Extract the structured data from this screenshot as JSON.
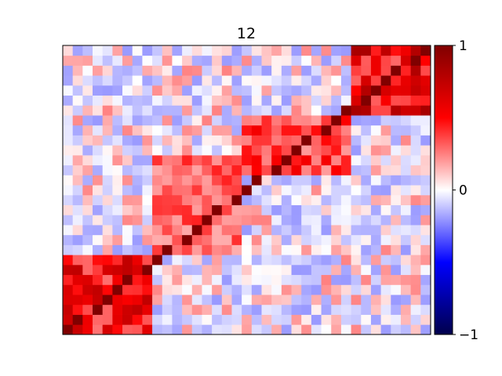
{
  "chart_data": {
    "type": "heatmap",
    "title": "12",
    "xlabel": "",
    "ylabel": "",
    "rows": 29,
    "cols": 37,
    "origin": "bottom-left",
    "grid": false,
    "colormap": "seismic",
    "clim": [
      -1,
      1
    ],
    "colorbar": {
      "placement": "right",
      "ticks": [
        1,
        0,
        -1
      ],
      "tick_labels": [
        "1",
        "0",
        "−1"
      ]
    },
    "diagonal_value": 1.0,
    "blocks": [
      {
        "name": "block-a",
        "x_range": [
          0,
          9
        ],
        "y_range": [
          0,
          8
        ],
        "value": 0.75
      },
      {
        "name": "block-b",
        "x_range": [
          9,
          18
        ],
        "y_range": [
          8,
          18
        ],
        "value": 0.45
      },
      {
        "name": "block-c",
        "x_range": [
          18,
          29
        ],
        "y_range": [
          16,
          22
        ],
        "value": 0.55
      },
      {
        "name": "block-d",
        "x_range": [
          29,
          37
        ],
        "y_range": [
          22,
          29
        ],
        "value": 0.85
      }
    ],
    "background_range": [
      -0.25,
      0.25
    ]
  },
  "colors": {
    "cmap_min": "#00004c",
    "cmap_low": "#0000ff",
    "cmap_mid": "#ffffff",
    "cmap_high": "#ff0000",
    "cmap_max": "#800000"
  }
}
